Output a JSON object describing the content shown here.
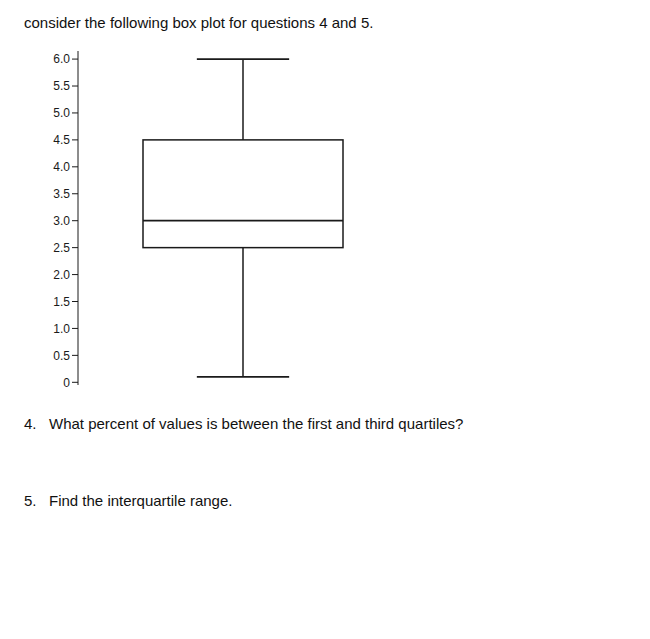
{
  "chart_data": {
    "type": "box",
    "title": "consider the following box plot for questions 4 and 5.",
    "annotations": [
      "4.   What percent of values is between the first and third quartiles?",
      "5.   Find the interquartile range."
    ],
    "whisker_low": 0.1,
    "q1": 2.5,
    "median": 3.0,
    "q3": 4.5,
    "whisker_high": 6.0,
    "color": "#1a1a1a",
    "ylim": [
      -0.05,
      6.15
    ],
    "yticks": [
      0,
      0.5,
      {
        "value": 1.0,
        "label": "1.0"
      },
      1.5,
      {
        "value": 2.0,
        "label": "2.0"
      },
      2.5,
      {
        "value": 3.0,
        "label": "3.0"
      },
      3.5,
      {
        "value": 4.0,
        "label": "4.0"
      },
      4.5,
      {
        "value": 5.0,
        "label": "5.0"
      },
      5.5,
      {
        "value": 6.0,
        "label": "6.0"
      }
    ],
    "grid": false
  }
}
